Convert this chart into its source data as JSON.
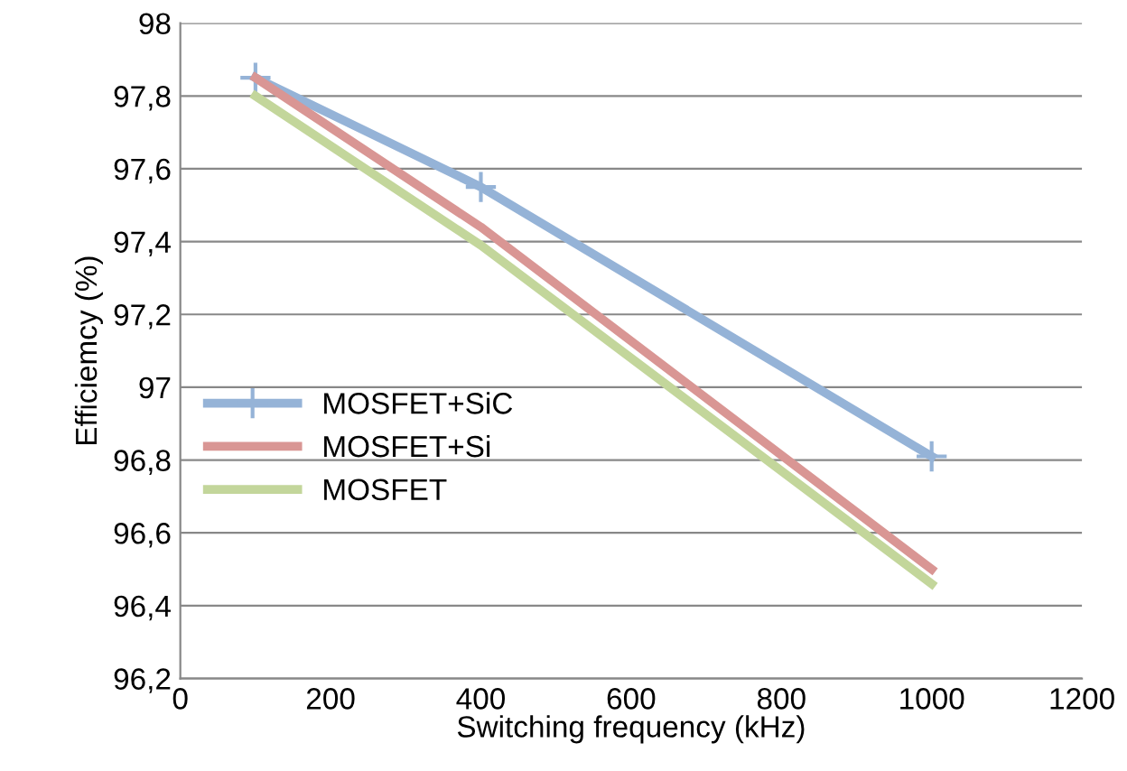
{
  "chart_data": {
    "type": "line",
    "xlabel": "Switching frequency (kHz)",
    "ylabel": "Efficiemcy (%)",
    "x": [
      100,
      400,
      1000
    ],
    "series": [
      {
        "name": "MOSFET+SiC",
        "color": "#95b3d7",
        "values": [
          97.85,
          97.55,
          96.81
        ],
        "marker": "cross"
      },
      {
        "name": "MOSFET+Si",
        "color": "#d99694",
        "values": [
          97.85,
          97.44,
          96.5
        ],
        "marker": "none"
      },
      {
        "name": "MOSFET",
        "color": "#c3d69b",
        "values": [
          97.8,
          97.39,
          96.46
        ],
        "marker": "none"
      }
    ],
    "xlim": [
      0,
      1200
    ],
    "xticks": [
      0,
      200,
      400,
      600,
      800,
      1000,
      1200
    ],
    "ylim": [
      96.2,
      98
    ],
    "yticks": [
      {
        "value": 96.2,
        "label": "96,2"
      },
      {
        "value": 96.4,
        "label": "96,4"
      },
      {
        "value": 96.6,
        "label": "96,6"
      },
      {
        "value": 96.8,
        "label": "96,8"
      },
      97,
      {
        "value": 97.2,
        "label": "97,2"
      },
      {
        "value": 97.4,
        "label": "97,4"
      },
      {
        "value": 97.6,
        "label": "97,6"
      },
      {
        "value": 97.8,
        "label": "97,8"
      },
      98
    ],
    "grid": "y",
    "legend": "center left",
    "line_style": "solid"
  }
}
